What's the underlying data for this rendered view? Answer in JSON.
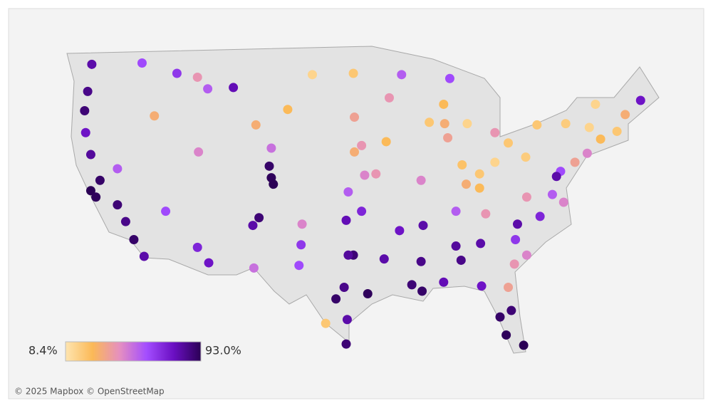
{
  "map": {
    "legend": {
      "min": {
        "value": 8.4,
        "label": "8.4%"
      },
      "max": {
        "value": 93.0,
        "label": "93.0%"
      },
      "colors": [
        "#fee5b0",
        "#fbb957",
        "#e58fc0",
        "#a34dff",
        "#6a0fc2",
        "#2b0055"
      ]
    },
    "attribution": "© 2025 Mapbox © OpenStreetMap",
    "points": {
      "lon": [
        -122.3,
        -122.7,
        -123,
        -122.9,
        -122.4,
        -121.5,
        -122.4,
        -121.9,
        -119.8,
        -119,
        -118.2,
        -117.2,
        -117.4,
        -116.2,
        -114,
        -112,
        -108.5,
        -111,
        -111.9,
        -119.8,
        -115.1,
        -112,
        -110.9,
        -106.6,
        -106,
        -105,
        -104.8,
        -104.6,
        -104.8,
        -106.3,
        -103.2,
        -100.8,
        -96.8,
        -96.7,
        -96,
        -96.7,
        -97.3,
        -95.7,
        -94.6,
        -96,
        -97.5,
        -96.8,
        -97.3,
        -97.7,
        -98.5,
        -95.4,
        -97.4,
        -97.5,
        -99.5,
        -106.5,
        -101.9,
        -101.8,
        -102.1,
        -93.8,
        -91.1,
        -90.1,
        -90.2,
        -90,
        -92.3,
        -86.8,
        -86.3,
        -88,
        -84.4,
        -86.8,
        -83.9,
        -85.8,
        -84.5,
        -84.5,
        -83,
        -81.7,
        -80,
        -86.2,
        -87.6,
        -87.9,
        -89.4,
        -93.3,
        -93.6,
        -90.2,
        -83,
        -85.7,
        -78.9,
        -74,
        -75.2,
        -76.6,
        -77,
        -77.4,
        -76.3,
        -78.6,
        -80.8,
        -81,
        -79.9,
        -81.1,
        -81.7,
        -84.3,
        -81.4,
        -82.5,
        -80.2,
        -81.9,
        -71.1,
        -70.3,
        -73.8,
        -72.7,
        -68.8,
        -73.2,
        -76.1,
        -92.1,
        -87.4,
        -88,
        -79.9
      ],
      "lat": [
        47.6,
        45.5,
        44,
        42.3,
        40.6,
        38.6,
        37.8,
        37.3,
        36.7,
        35.4,
        34,
        32.7,
        47.7,
        43.6,
        46.9,
        46.6,
        45.8,
        45.7,
        40.8,
        39.5,
        36.2,
        33.4,
        32.2,
        35.1,
        35.7,
        39.7,
        38.8,
        38.3,
        41.1,
        42.9,
        44.1,
        46.8,
        46.9,
        43.5,
        41.3,
        40.8,
        37.7,
        39,
        39.1,
        36.2,
        35.5,
        32.8,
        32.8,
        30.3,
        29.4,
        29.8,
        27.8,
        25.9,
        27.5,
        31.8,
        33.6,
        35.2,
        32,
        32.5,
        30.5,
        30,
        32.3,
        35.1,
        34.7,
        33.5,
        32.4,
        30.7,
        33.7,
        36.2,
        36,
        38.3,
        38,
        39.1,
        40,
        41.5,
        40.4,
        39.8,
        41.9,
        43,
        43.1,
        45,
        41.6,
        38.6,
        42.3,
        43,
        42.9,
        40.7,
        40,
        39.3,
        38.9,
        37.5,
        36.9,
        35.8,
        35.2,
        34,
        32.8,
        32.1,
        30.3,
        30.4,
        28.5,
        28,
        25.8,
        26.6,
        42.4,
        43.7,
        42.7,
        41.8,
        44.8,
        44.5,
        43,
        46.8,
        46.5,
        44.5,
        37.3
      ],
      "values": [
        80,
        85,
        88,
        75,
        82,
        90,
        93,
        92,
        88,
        85,
        90,
        80,
        60,
        30,
        65,
        40,
        78,
        55,
        45,
        55,
        60,
        70,
        75,
        80,
        88,
        90,
        92,
        93,
        50,
        30,
        25,
        15,
        20,
        35,
        40,
        30,
        55,
        45,
        40,
        70,
        78,
        88,
        82,
        85,
        90,
        92,
        80,
        88,
        20,
        50,
        65,
        45,
        60,
        80,
        88,
        90,
        85,
        80,
        75,
        82,
        85,
        78,
        80,
        55,
        40,
        30,
        25,
        20,
        15,
        20,
        18,
        22,
        35,
        30,
        20,
        40,
        25,
        45,
        40,
        15,
        20,
        45,
        35,
        60,
        80,
        55,
        45,
        70,
        80,
        65,
        45,
        40,
        35,
        75,
        88,
        90,
        93,
        92,
        20,
        30,
        15,
        25,
        75,
        15,
        18,
        55,
        60,
        25,
        40
      ]
    }
  }
}
